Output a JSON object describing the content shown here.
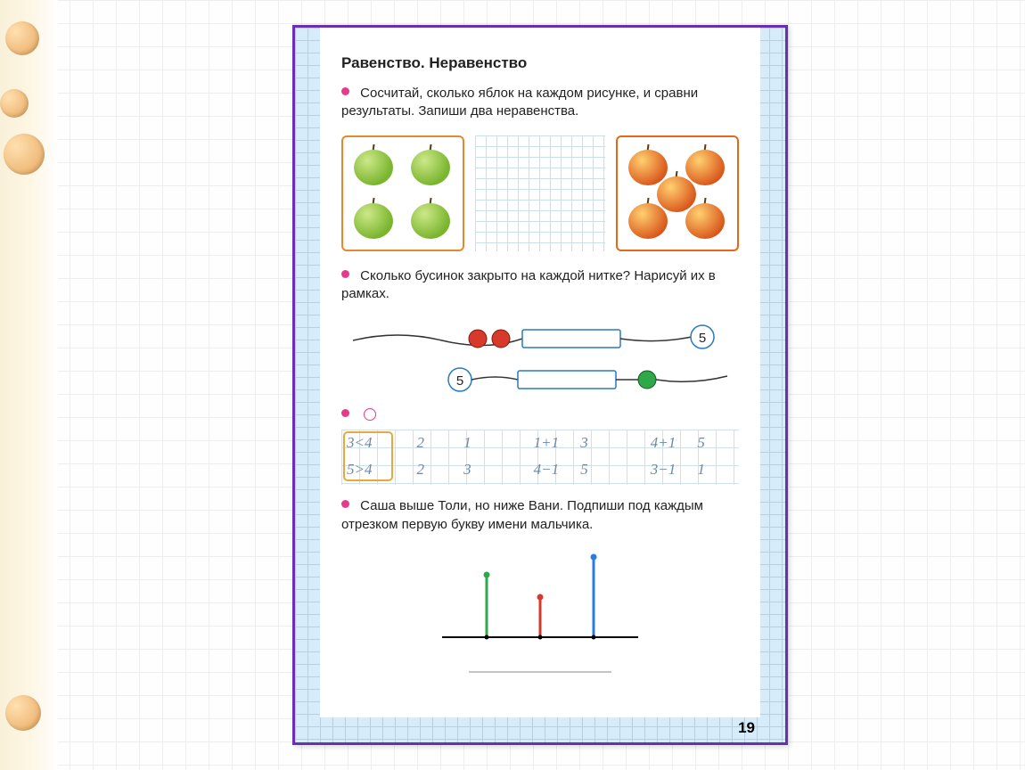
{
  "page_number": "19",
  "title": "Равенство. Неравенство",
  "colors": {
    "frame_border": "#6b2fb3",
    "blue_grid": "#a9d3f2",
    "blue_grid_bg": "#d6ecfa",
    "bullet": "#e83a8c",
    "apple_box_border": "#e58a2c",
    "green_apple": "#7ab52e",
    "orange_apple": "#d9541a",
    "hw_grid_line": "#cfe0ef",
    "hw_text": "#6a89a8",
    "hw_highlight_border": "#e8a83a",
    "bead_red": "#d73a2a",
    "bead_green": "#2fa84a",
    "bead_stroke": "#2a7abf",
    "seg_green": "#2fa84a",
    "seg_red": "#d73a2a",
    "seg_blue": "#2a7de0"
  },
  "task1": {
    "text": "Сосчитай, сколько яблок на каждом рисунке, и сравни результаты. Запиши два неравенства.",
    "left_apples": {
      "count": 4,
      "color": "green",
      "layout": [
        [
          0,
          0
        ],
        [
          1,
          0
        ],
        [
          0,
          1
        ],
        [
          1,
          1
        ]
      ]
    },
    "right_apples": {
      "count": 5,
      "color": "orange",
      "layout": [
        [
          0,
          0
        ],
        [
          1,
          0
        ],
        [
          0.5,
          0.5
        ],
        [
          0,
          1
        ],
        [
          1,
          1
        ]
      ]
    }
  },
  "task2": {
    "text": "Сколько бусинок закрыто на каждой нитке? Нарисуй их в рамках.",
    "strings": [
      {
        "visible_beads": [
          {
            "color": "#d73a2a"
          },
          {
            "color": "#d73a2a"
          }
        ],
        "slot_after_beads": true,
        "end_label": "5",
        "label_side": "right"
      },
      {
        "start_label": "5",
        "slot_first": true,
        "visible_beads": [
          {
            "color": "#2fa84a"
          }
        ],
        "label_side": "left"
      }
    ]
  },
  "task3": {
    "rows": [
      [
        "3<4",
        "2",
        "1",
        "1+1",
        "3",
        "4+1",
        "5"
      ],
      [
        "5>4",
        "2",
        "3",
        "4−1",
        "5",
        "3−1",
        "1"
      ]
    ],
    "highlighted_col": 0
  },
  "task4": {
    "text": "Саша выше Толи, но ниже Вани. Подпиши под каждым отрезком первую букву имени мальчика.",
    "segments": [
      {
        "color": "#2fa84a",
        "height": 70
      },
      {
        "color": "#d73a2a",
        "height": 45
      },
      {
        "color": "#2a7de0",
        "height": 90
      }
    ]
  }
}
